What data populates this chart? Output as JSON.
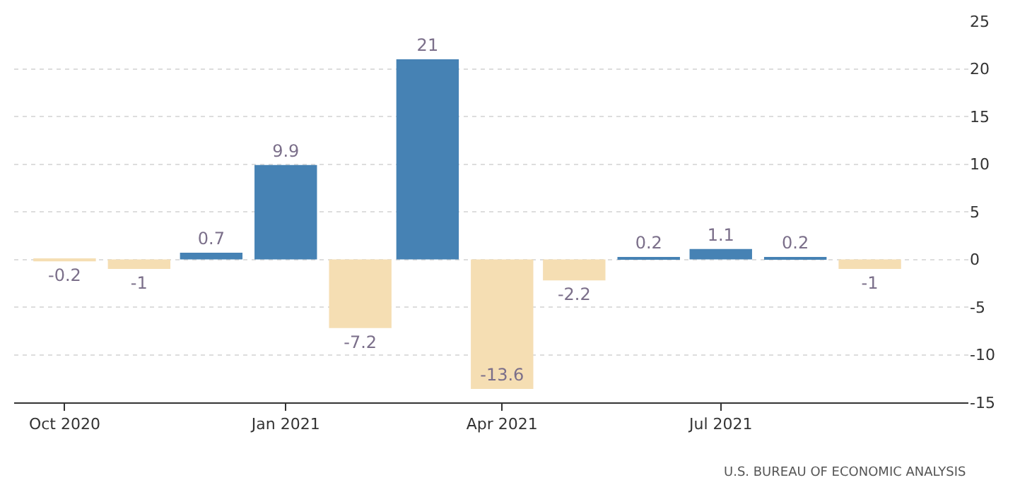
{
  "chart_data": {
    "type": "bar",
    "x": [
      "2020-10",
      "2020-11",
      "2020-12",
      "2021-01",
      "2021-02",
      "2021-03",
      "2021-04",
      "2021-05",
      "2021-06",
      "2021-07",
      "2021-08",
      "2021-09"
    ],
    "values": [
      -0.2,
      -1,
      0.7,
      9.9,
      -7.2,
      21,
      -13.6,
      -2.2,
      0.2,
      1.1,
      0.2,
      -1
    ],
    "colors": [
      "#f5deb3",
      "#f5deb3",
      "#4682b4",
      "#4682b4",
      "#f5deb3",
      "#4682b4",
      "#f5deb3",
      "#f5deb3",
      "#4682b4",
      "#4682b4",
      "#4682b4",
      "#f5deb3"
    ],
    "xlim": [
      "2020-09-10",
      "2021-10-12"
    ],
    "xticks": [
      {
        "value": "2020-10",
        "label": "Oct 2020"
      },
      {
        "value": "2021-01",
        "label": "Jan 2021"
      },
      {
        "value": "2021-04",
        "label": "Apr 2021"
      },
      {
        "value": "2021-07",
        "label": "Jul 2021"
      }
    ],
    "ylim": [
      -15,
      25
    ],
    "yticks": [
      -15,
      -10,
      -5,
      0,
      5,
      10,
      15,
      20,
      25
    ],
    "grid": "y",
    "data_labels": true,
    "annotations": [
      "U.S. BUREAU OF ECONOMIC ANALYSIS"
    ]
  }
}
